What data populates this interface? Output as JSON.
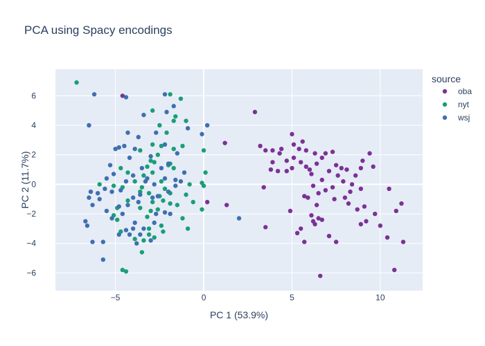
{
  "chart_data": {
    "type": "scatter",
    "title": "PCA using Spacy encodings",
    "xlabel": "PC 1 (53.9%)",
    "ylabel": "PC 2 (11.7%)",
    "xlim": [
      -8.4,
      12.4
    ],
    "ylim": [
      -7.2,
      7.8
    ],
    "x_ticks": [
      -5,
      0,
      5,
      10
    ],
    "x_tick_labels": [
      "−5",
      "0",
      "5",
      "10"
    ],
    "y_ticks": [
      -6,
      -4,
      -2,
      0,
      2,
      4,
      6
    ],
    "y_tick_labels": [
      "−6",
      "−4",
      "−2",
      "0",
      "2",
      "4",
      "6"
    ],
    "grid": true,
    "legend_title": "source",
    "legend_position": "top-right",
    "series": [
      {
        "name": "oba",
        "color": "#7b3294",
        "points": [
          [
            -4.6,
            6.0
          ],
          [
            2.9,
            4.9
          ],
          [
            1.2,
            2.8
          ],
          [
            0.2,
            -1.2
          ],
          [
            1.3,
            -1.4
          ],
          [
            3.5,
            -2.9
          ],
          [
            3.4,
            -0.2
          ],
          [
            3.2,
            2.6
          ],
          [
            3.5,
            2.3
          ],
          [
            3.9,
            2.3
          ],
          [
            4.3,
            2.1
          ],
          [
            4.4,
            2.4
          ],
          [
            3.9,
            1.5
          ],
          [
            3.8,
            1.0
          ],
          [
            4.2,
            0.9
          ],
          [
            4.7,
            0.9
          ],
          [
            5.0,
            3.4
          ],
          [
            5.1,
            2.7
          ],
          [
            5.6,
            2.9
          ],
          [
            5.4,
            2.4
          ],
          [
            5.8,
            2.3
          ],
          [
            6.3,
            2.1
          ],
          [
            5.1,
            1.8
          ],
          [
            5.5,
            1.5
          ],
          [
            5.0,
            1.1
          ],
          [
            4.7,
            1.6
          ],
          [
            5.8,
            1.2
          ],
          [
            6.0,
            1.0
          ],
          [
            6.4,
            1.4
          ],
          [
            6.1,
            0.7
          ],
          [
            6.7,
            1.8
          ],
          [
            6.9,
            2.1
          ],
          [
            7.3,
            2.2
          ],
          [
            7.5,
            1.3
          ],
          [
            7.1,
            0.9
          ],
          [
            7.6,
            0.6
          ],
          [
            7.8,
            1.1
          ],
          [
            8.1,
            1.0
          ],
          [
            7.9,
            0.2
          ],
          [
            8.4,
            0.0
          ],
          [
            8.6,
            0.6
          ],
          [
            8.9,
            1.1
          ],
          [
            9.0,
            1.6
          ],
          [
            9.4,
            2.1
          ],
          [
            9.6,
            1.2
          ],
          [
            8.9,
            -0.3
          ],
          [
            8.3,
            -0.5
          ],
          [
            8.0,
            -0.9
          ],
          [
            7.4,
            -1.0
          ],
          [
            7.3,
            -0.2
          ],
          [
            6.9,
            -0.4
          ],
          [
            6.5,
            -0.6
          ],
          [
            6.2,
            -0.1
          ],
          [
            6.7,
            0.3
          ],
          [
            5.7,
            -0.8
          ],
          [
            5.9,
            -0.9
          ],
          [
            6.4,
            -1.4
          ],
          [
            6.7,
            -2.4
          ],
          [
            6.1,
            -2.1
          ],
          [
            6.5,
            -2.3
          ],
          [
            6.2,
            -2.5
          ],
          [
            6.3,
            -2.7
          ],
          [
            5.5,
            -3.0
          ],
          [
            5.3,
            -3.3
          ],
          [
            4.9,
            -1.8
          ],
          [
            5.7,
            -3.9
          ],
          [
            7.1,
            -3.5
          ],
          [
            7.5,
            -3.9
          ],
          [
            8.2,
            -1.3
          ],
          [
            8.7,
            -1.7
          ],
          [
            8.9,
            -2.7
          ],
          [
            9.2,
            -2.5
          ],
          [
            9.7,
            -2.0
          ],
          [
            10.0,
            -2.8
          ],
          [
            10.5,
            -0.3
          ],
          [
            10.9,
            -1.8
          ],
          [
            10.4,
            -3.6
          ],
          [
            10.8,
            -5.8
          ],
          [
            11.2,
            -1.3
          ],
          [
            11.3,
            -3.9
          ],
          [
            6.6,
            -6.2
          ],
          [
            9.1,
            -1.5
          ]
        ]
      },
      {
        "name": "nyt",
        "color": "#1a9e77",
        "points": [
          [
            -7.2,
            6.9
          ],
          [
            -5.9,
            0.0
          ],
          [
            -5.1,
            -0.1
          ],
          [
            -4.6,
            -0.2
          ],
          [
            -4.7,
            1.1
          ],
          [
            -4.3,
            0.8
          ],
          [
            -3.6,
            2.3
          ],
          [
            -2.1,
            3.5
          ],
          [
            -1.7,
            4.3
          ],
          [
            -1.0,
            4.3
          ],
          [
            -2.5,
            4.0
          ],
          [
            -2.9,
            5.0
          ],
          [
            -1.9,
            6.1
          ],
          [
            -1.3,
            5.8
          ],
          [
            -1.9,
            1.4
          ],
          [
            -1.7,
            2.4
          ],
          [
            -2.0,
            1.3
          ],
          [
            -2.6,
            2.0
          ],
          [
            -2.8,
            1.5
          ],
          [
            -2.9,
            0.8
          ],
          [
            -3.2,
            1.2
          ],
          [
            -3.4,
            0.6
          ],
          [
            -3.9,
            0.2
          ],
          [
            -3.5,
            -0.2
          ],
          [
            -3.1,
            -0.6
          ],
          [
            -2.9,
            -1.2
          ],
          [
            -2.5,
            -0.8
          ],
          [
            -2.2,
            -0.3
          ],
          [
            -2.4,
            0.2
          ],
          [
            -1.9,
            -0.6
          ],
          [
            -1.5,
            -1.4
          ],
          [
            -1.2,
            -2.3
          ],
          [
            -1.0,
            -0.7
          ],
          [
            -0.6,
            -1.2
          ],
          [
            -0.8,
            0.0
          ],
          [
            -0.1,
            0.1
          ],
          [
            0.1,
            0.8
          ],
          [
            0.0,
            -0.1
          ],
          [
            -0.1,
            -1.7
          ],
          [
            0.0,
            2.3
          ],
          [
            -4.9,
            -2.4
          ],
          [
            -4.7,
            -3.2
          ],
          [
            -3.9,
            -3.7
          ],
          [
            -3.4,
            -3.8
          ],
          [
            -3.1,
            -3.0
          ],
          [
            -2.8,
            -3.6
          ],
          [
            -2.4,
            -2.8
          ],
          [
            -2.3,
            -3.2
          ],
          [
            -3.5,
            -4.6
          ],
          [
            -4.6,
            -5.8
          ],
          [
            -4.4,
            -5.9
          ],
          [
            -0.9,
            -3.0
          ],
          [
            -1.6,
            4.6
          ],
          [
            -2.9,
            2.7
          ],
          [
            -3.0,
            1.6
          ],
          [
            -2.4,
            2.6
          ],
          [
            -1.2,
            2.6
          ],
          [
            -1.7,
            1.1
          ],
          [
            -2.6,
            -1.7
          ],
          [
            -3.6,
            -1.6
          ],
          [
            -3.2,
            -2.2
          ],
          [
            -2.3,
            -1.1
          ],
          [
            -1.9,
            -1.3
          ],
          [
            -3.6,
            -0.5
          ],
          [
            -4.3,
            -1.1
          ],
          [
            -3.1,
            -3.4
          ],
          [
            -4.9,
            -1.6
          ],
          [
            -5.1,
            -2.1
          ],
          [
            -3.0,
            -1.8
          ]
        ]
      },
      {
        "name": "wsj",
        "color": "#3f6fb0",
        "points": [
          [
            -6.2,
            6.1
          ],
          [
            -4.4,
            5.9
          ],
          [
            -6.5,
            4.0
          ],
          [
            -3.4,
            4.7
          ],
          [
            -2.2,
            6.1
          ],
          [
            -1.7,
            5.3
          ],
          [
            -2.1,
            4.9
          ],
          [
            -0.1,
            3.4
          ],
          [
            0.2,
            4.0
          ],
          [
            -0.9,
            3.8
          ],
          [
            -2.7,
            3.5
          ],
          [
            -3.7,
            3.2
          ],
          [
            -4.3,
            3.5
          ],
          [
            -4.8,
            2.5
          ],
          [
            -4.5,
            2.6
          ],
          [
            -5.0,
            2.4
          ],
          [
            -5.3,
            1.3
          ],
          [
            -5.1,
            0.7
          ],
          [
            -5.5,
            0.4
          ],
          [
            -4.4,
            0.2
          ],
          [
            -4.0,
            0.6
          ],
          [
            -3.5,
            1.1
          ],
          [
            -3.0,
            1.9
          ],
          [
            -3.9,
            2.4
          ],
          [
            -4.2,
            1.8
          ],
          [
            -2.4,
            1.1
          ],
          [
            -2.2,
            2.7
          ],
          [
            -2.0,
            1.4
          ],
          [
            -1.6,
            0.3
          ],
          [
            -1.3,
            0.2
          ],
          [
            -1.1,
            0.8
          ],
          [
            -1.6,
            -0.1
          ],
          [
            -2.0,
            -0.5
          ],
          [
            -2.6,
            -0.8
          ],
          [
            -2.8,
            0.0
          ],
          [
            -3.3,
            0.2
          ],
          [
            -3.6,
            -0.7
          ],
          [
            -4.0,
            -0.9
          ],
          [
            -4.3,
            -1.4
          ],
          [
            -4.8,
            -1.5
          ],
          [
            -5.2,
            -0.5
          ],
          [
            -5.6,
            -0.3
          ],
          [
            -6.0,
            -0.6
          ],
          [
            -6.3,
            -1.4
          ],
          [
            -6.5,
            -0.9
          ],
          [
            -6.4,
            -0.5
          ],
          [
            -6.7,
            -2.5
          ],
          [
            -6.6,
            -2.8
          ],
          [
            -6.3,
            -3.9
          ],
          [
            -5.7,
            -3.9
          ],
          [
            -5.5,
            -1.8
          ],
          [
            -5.2,
            -2.3
          ],
          [
            -4.8,
            -3.4
          ],
          [
            -4.4,
            -3.1
          ],
          [
            -4.2,
            -3.4
          ],
          [
            -4.0,
            -3.0
          ],
          [
            -3.6,
            -3.4
          ],
          [
            -3.4,
            -3.0
          ],
          [
            -2.8,
            -2.6
          ],
          [
            -2.7,
            -2.0
          ],
          [
            -2.2,
            -1.9
          ],
          [
            -1.9,
            -2.0
          ],
          [
            -3.0,
            -3.8
          ],
          [
            -5.7,
            -5.1
          ],
          [
            -3.8,
            -4.0
          ],
          [
            2.0,
            -2.3
          ],
          [
            -3.7,
            -1.2
          ],
          [
            -2.9,
            -0.9
          ],
          [
            -3.2,
            0.4
          ],
          [
            -2.2,
            0.4
          ],
          [
            -4.7,
            -0.4
          ],
          [
            -5.9,
            -1.0
          ],
          [
            -1.5,
            2.1
          ],
          [
            -4.6,
            -2.0
          ],
          [
            -3.9,
            -2.6
          ]
        ]
      }
    ]
  }
}
